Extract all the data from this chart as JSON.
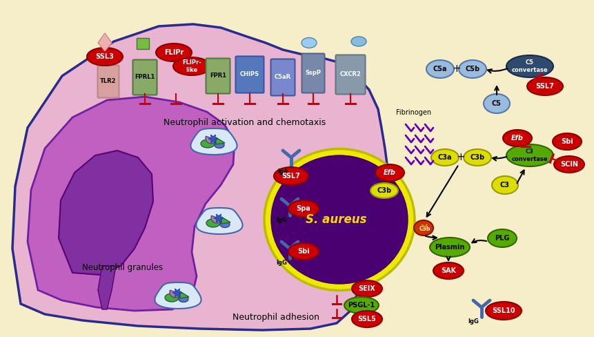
{
  "bg_color": "#F5EEC8",
  "cell_color": "#E8B4D0",
  "cell_edge": "#2B2B8E",
  "nucleus_color": "#C060C0",
  "nucleus_edge": "#7020A0",
  "dark_blob_color": "#8030A0",
  "saur_yellow": "#F0E800",
  "saur_purple": "#4A0070",
  "saur_label": "S. aureus",
  "saur_label_color": "#FFD700",
  "red": "#CC0000",
  "red_edge": "#880000",
  "green": "#55AA00",
  "green_edge": "#336600",
  "yellow": "#DDDD00",
  "yellow_edge": "#999900",
  "light_blue": "#99BBDD",
  "light_blue_edge": "#5577AA",
  "dark_blue": "#2E4A6E",
  "dark_blue_edge": "#1A2A4A",
  "steel_blue": "#4466AA",
  "mid_blue": "#6688BB",
  "c3conv_green": "#55AA00",
  "inhibit_red": "#CC0000",
  "receptor_green": "#88AA66",
  "receptor_blue": "#6688BB",
  "tlr2_pink": "#D9A0A0",
  "chips_blue": "#5577BB",
  "sspp_blue": "#7788AA",
  "cxcr2_gray": "#8899AA",
  "fibrinogen_purple": "#6600BB",
  "granule_bg": "#D8E8F8",
  "granule_edge": "#4466AA",
  "section_activation": "Neutrophil activation and chemotaxis",
  "section_granules": "Neutrophil granules",
  "section_adhesion": "Neutrophil adhesion"
}
